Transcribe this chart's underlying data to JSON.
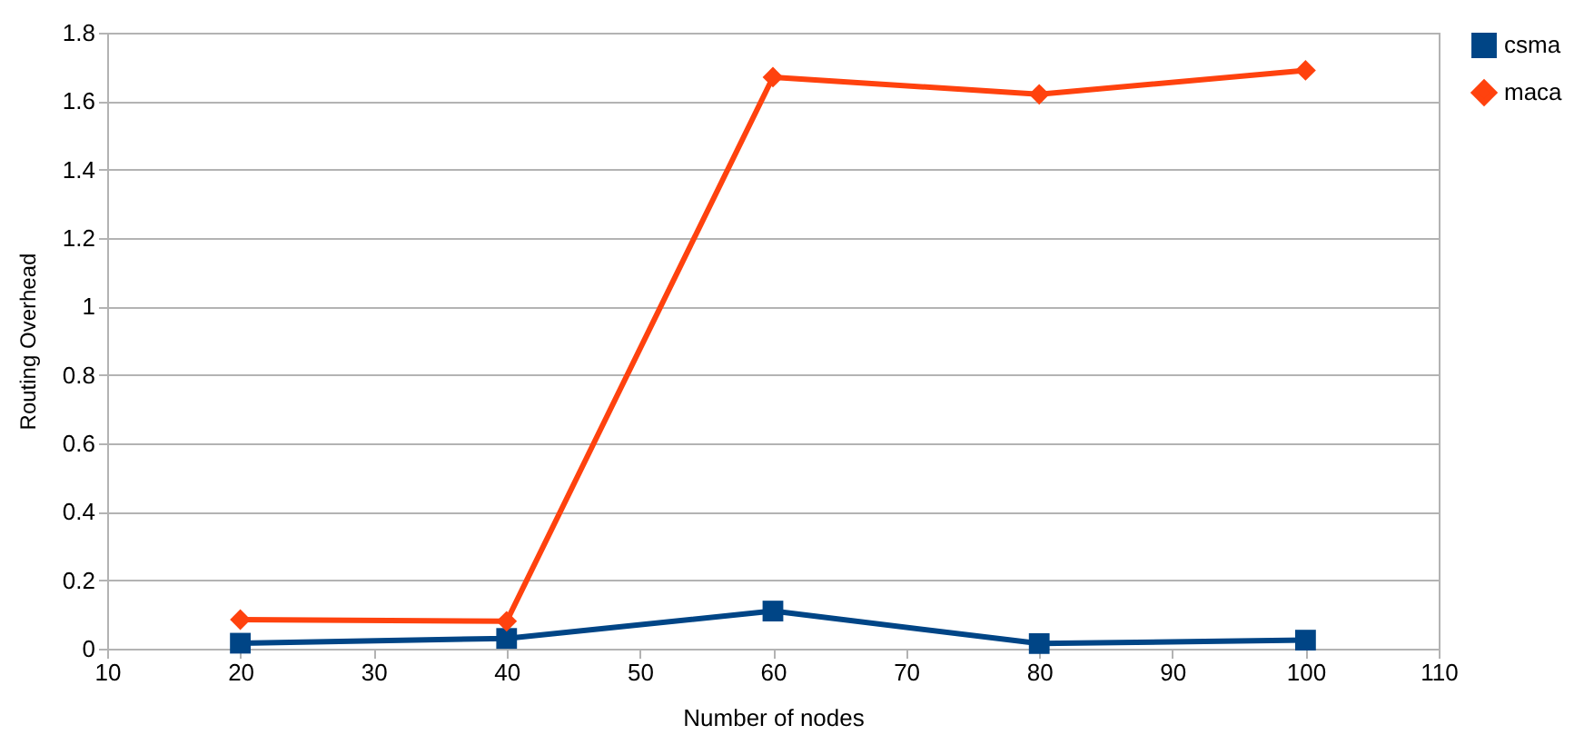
{
  "chart_data": {
    "type": "line",
    "xlabel": "Number of nodes",
    "ylabel": "Routing Overhead",
    "x": [
      20,
      40,
      60,
      80,
      100
    ],
    "series": [
      {
        "name": "csma",
        "color": "#004586",
        "marker": "square",
        "values": [
          0.016,
          0.03,
          0.11,
          0.015,
          0.025
        ]
      },
      {
        "name": "maca",
        "color": "#ff420e",
        "marker": "diamond",
        "values": [
          0.085,
          0.08,
          1.67,
          1.62,
          1.69
        ]
      }
    ],
    "xlim": [
      10,
      110
    ],
    "xticks": [
      10,
      20,
      30,
      40,
      50,
      60,
      70,
      80,
      90,
      100,
      110
    ],
    "ylim": [
      0,
      1.8
    ],
    "yticks": [
      0,
      0.2,
      0.4,
      0.6,
      0.8,
      1,
      1.2,
      1.4,
      1.6,
      1.8
    ],
    "grid": "y",
    "legend": "right"
  }
}
